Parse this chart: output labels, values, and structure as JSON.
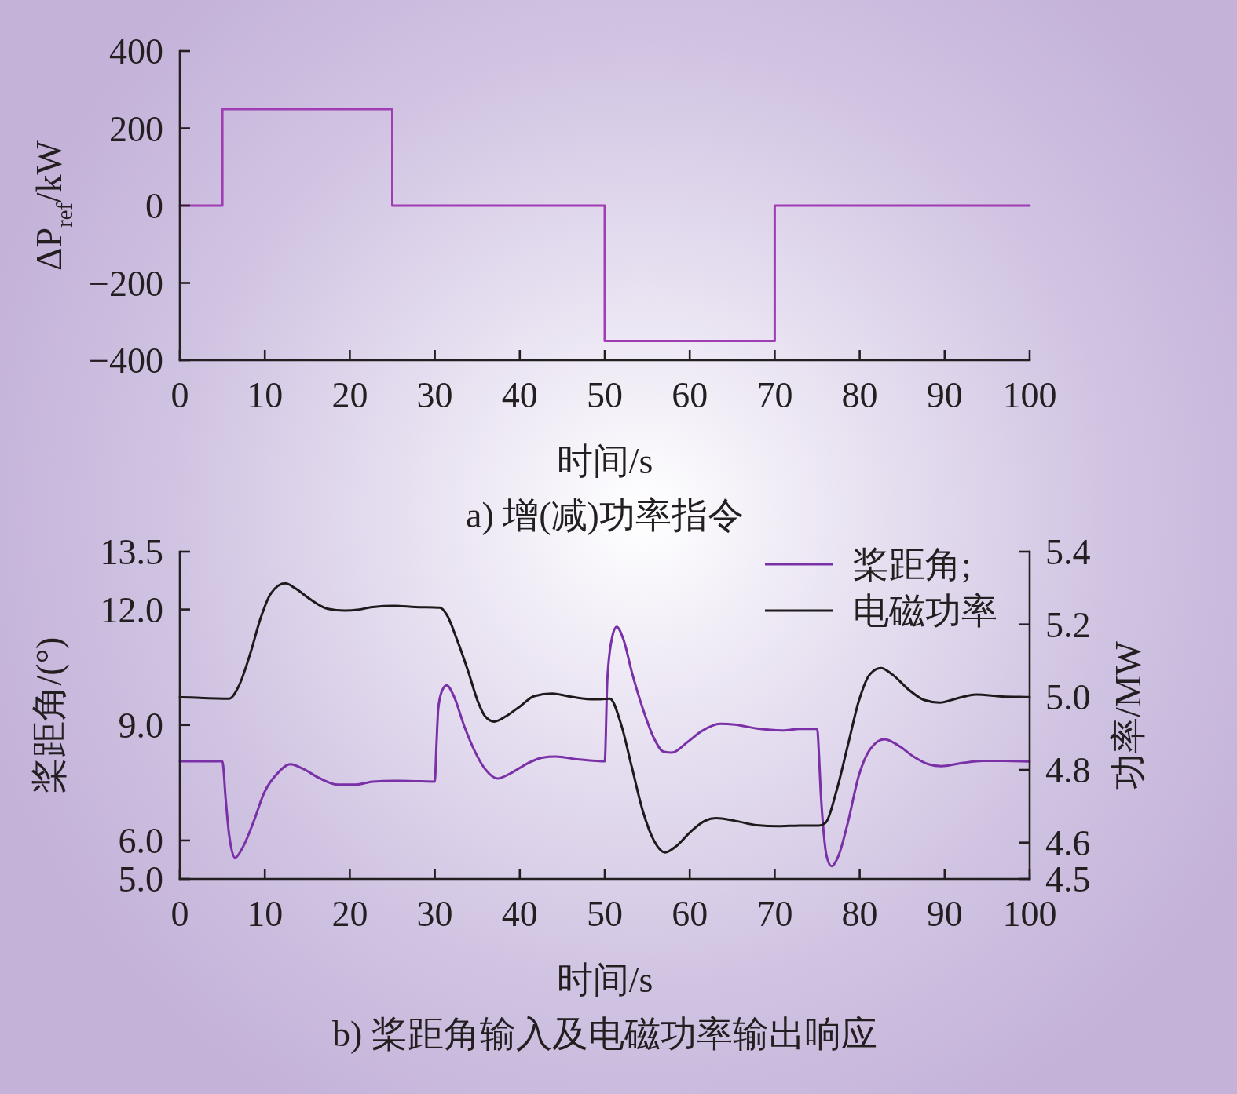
{
  "chart_data": [
    {
      "type": "step",
      "title": "a) 增(减)功率指令",
      "xlabel": "时间/s",
      "ylabel": "ΔP$_{ref}$/kW",
      "color": "#a03cb4",
      "x": [
        0,
        5,
        25,
        50,
        70,
        100
      ],
      "values": [
        0,
        250,
        0,
        -350,
        0,
        0
      ],
      "xlim": [
        0,
        100
      ],
      "xticks": [
        0,
        10,
        20,
        30,
        40,
        50,
        60,
        70,
        80,
        90,
        100
      ],
      "ylim": [
        -400,
        400
      ],
      "yticks": [
        -400,
        -200,
        0,
        200,
        400
      ]
    },
    {
      "type": "line",
      "title": "b) 桨距角输入及电磁功率输出响应",
      "xlabel": "时间/s",
      "ylabel": "桨距角/(°)",
      "y2label": "功率/MW",
      "legend": "top right",
      "xlim": [
        0,
        100
      ],
      "xticks": [
        0,
        10,
        20,
        30,
        40,
        50,
        60,
        70,
        80,
        90,
        100
      ],
      "ylim": [
        5,
        13.5
      ],
      "yticks": [
        {
          "value": 5,
          "label": "5.0"
        },
        {
          "value": 6,
          "label": "6.0"
        },
        {
          "value": 9,
          "label": "9.0"
        },
        {
          "value": 12,
          "label": "12.0"
        },
        13.5
      ],
      "y2lim": [
        4.5,
        5.4
      ],
      "y2ticks": [
        4.5,
        4.6,
        4.8,
        {
          "value": 5,
          "label": "5.0"
        },
        5.2,
        5.4
      ],
      "series": [
        {
          "name": "桨距角;",
          "color": "#7a30a6",
          "x": [
            0,
            5.0,
            5.4,
            5.8,
            6.5,
            7.4,
            8.7,
            9.9,
            11.6,
            13.0,
            14.5,
            16.5,
            18.6,
            20.7,
            22.7,
            25.2,
            27.7,
            30.0,
            30.2,
            30.4,
            30.8,
            31.4,
            32.2,
            33.5,
            34.7,
            35.9,
            37.4,
            38.8,
            40.9,
            42.6,
            44.2,
            46.7,
            50.0,
            50.3,
            50.9,
            51.4,
            52.2,
            53.2,
            54.5,
            55.8,
            56.9,
            57.9,
            59.7,
            61.4,
            63.6,
            65.3,
            67.9,
            70.9,
            73.0,
            75.0,
            75.2,
            75.4,
            75.7,
            76.1,
            76.7,
            77.5,
            78.6,
            79.9,
            81.2,
            82.9,
            84.6,
            86.4,
            88.1,
            89.6,
            92.0,
            94.5,
            97.1,
            100
          ],
          "values": [
            8.06,
            8.06,
            7.05,
            6.14,
            5.55,
            5.82,
            6.5,
            7.23,
            7.77,
            7.98,
            7.86,
            7.61,
            7.45,
            7.45,
            7.53,
            7.55,
            7.54,
            7.53,
            8.5,
            9.41,
            9.86,
            10.03,
            9.77,
            8.95,
            8.32,
            7.86,
            7.61,
            7.73,
            8.0,
            8.15,
            8.18,
            8.11,
            8.06,
            10.17,
            11.31,
            11.55,
            11.22,
            10.36,
            9.41,
            8.65,
            8.31,
            8.28,
            8.55,
            8.84,
            9.03,
            9.01,
            8.91,
            8.86,
            8.9,
            8.9,
            8.26,
            7.31,
            6.36,
            5.6,
            5.33,
            5.6,
            6.46,
            7.69,
            8.36,
            8.63,
            8.46,
            8.17,
            7.98,
            7.93,
            8.01,
            8.07,
            8.07,
            8.05
          ]
        },
        {
          "name": "电磁功率",
          "color": "#1e1a1c",
          "axis": "y2",
          "x": [
            0,
            5.8,
            7.0,
            8.3,
            9.5,
            10.7,
            12.4,
            13.6,
            15.3,
            17.4,
            19.4,
            21.1,
            22.7,
            25.2,
            27.7,
            30.6,
            31.4,
            32.6,
            33.9,
            35.1,
            35.9,
            37.0,
            38.4,
            40.1,
            41.7,
            43.8,
            46.3,
            48.8,
            50.6,
            51.9,
            53.2,
            54.5,
            55.8,
            57.1,
            58.4,
            60.1,
            61.8,
            63.1,
            65.3,
            67.9,
            70.4,
            73.0,
            75.2,
            76.0,
            77.3,
            78.6,
            79.9,
            81.2,
            82.5,
            83.8,
            85.9,
            87.6,
            89.4,
            91.5,
            93.7,
            96.7,
            100
          ],
          "values": [
            5.0,
            4.996,
            5.034,
            5.121,
            5.217,
            5.285,
            5.313,
            5.299,
            5.27,
            5.243,
            5.238,
            5.241,
            5.248,
            5.251,
            5.248,
            5.246,
            5.227,
            5.159,
            5.073,
            4.986,
            4.948,
            4.933,
            4.948,
            4.976,
            5.003,
            5.01,
            5.0,
            4.994,
            4.996,
            4.927,
            4.806,
            4.685,
            4.605,
            4.573,
            4.59,
            4.63,
            4.66,
            4.667,
            4.66,
            4.648,
            4.645,
            4.647,
            4.647,
            4.655,
            4.745,
            4.867,
            4.99,
            5.063,
            5.08,
            5.063,
            5.018,
            4.992,
            4.985,
            4.997,
            5.007,
            5.002,
            5.0
          ]
        }
      ]
    }
  ]
}
